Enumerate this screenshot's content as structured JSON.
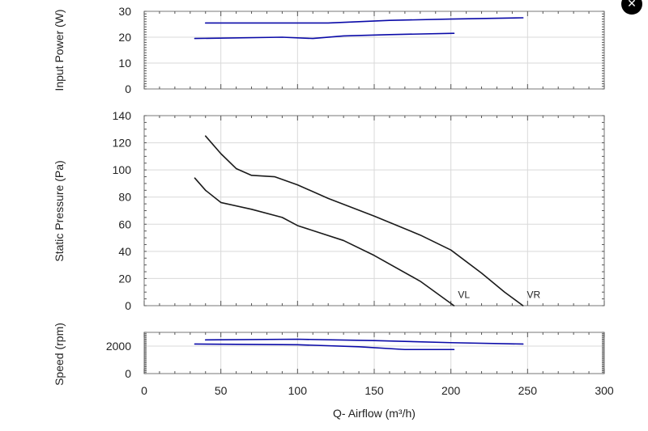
{
  "close_icon": "close-icon",
  "colors": {
    "blue": "#0a0aa8",
    "black": "#1a1a1a",
    "grid": "#d9d9d9",
    "frame": "#777777"
  },
  "chart_data": [
    {
      "type": "line",
      "ylabel": "Input Power (W)",
      "ylim": [
        0,
        30
      ],
      "yticks": [
        0,
        10,
        20,
        30
      ],
      "xlim": [
        0,
        300
      ],
      "grid": true,
      "series": [
        {
          "x": [
            40,
            80,
            120,
            160,
            200,
            247
          ],
          "y": [
            25.5,
            25.5,
            25.5,
            26.5,
            27.0,
            27.5
          ]
        },
        {
          "x": [
            33,
            90,
            110,
            130,
            160,
            202
          ],
          "y": [
            19.5,
            20.0,
            19.5,
            20.5,
            21.0,
            21.5
          ]
        }
      ]
    },
    {
      "type": "line",
      "ylabel": "Static Pressure (Pa)",
      "ylim": [
        0,
        140
      ],
      "yticks": [
        0,
        20,
        40,
        60,
        80,
        100,
        120,
        140
      ],
      "xlim": [
        0,
        300
      ],
      "grid": true,
      "series": [
        {
          "name": "VR",
          "x": [
            40,
            50,
            60,
            70,
            85,
            100,
            120,
            150,
            180,
            200,
            220,
            235,
            247
          ],
          "y": [
            125,
            112,
            101,
            96,
            95,
            89,
            79,
            66,
            52,
            41,
            24,
            10,
            0
          ]
        },
        {
          "name": "VL",
          "x": [
            33,
            40,
            50,
            70,
            90,
            100,
            130,
            150,
            180,
            202
          ],
          "y": [
            94,
            85,
            76,
            71,
            65,
            59,
            48,
            37,
            18,
            0
          ]
        }
      ],
      "annotations": [
        {
          "text": "VL",
          "x": 203,
          "y": 5
        },
        {
          "text": "VR",
          "x": 248,
          "y": 5
        }
      ]
    },
    {
      "type": "line",
      "ylabel": "Speed (rpm)",
      "ylim": [
        0,
        3000
      ],
      "yticks": [
        0,
        2000
      ],
      "xlim": [
        0,
        300
      ],
      "xticks": [
        0,
        50,
        100,
        150,
        200,
        250,
        300
      ],
      "xlabel": "Q- Airflow (m³/h)",
      "grid": true,
      "series": [
        {
          "x": [
            40,
            100,
            150,
            200,
            247
          ],
          "y": [
            2450,
            2500,
            2400,
            2250,
            2150
          ]
        },
        {
          "x": [
            33,
            100,
            140,
            170,
            202
          ],
          "y": [
            2150,
            2100,
            1950,
            1750,
            1750
          ]
        }
      ]
    }
  ]
}
